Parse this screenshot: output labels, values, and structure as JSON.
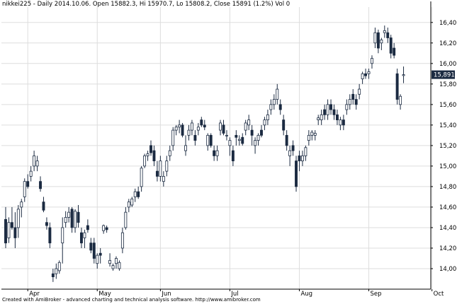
{
  "header": "nikkei225 - Daily 2014.10.06. Open 15882.3, Hi 15970.7, Lo 15808.2, Close 15891 (1.2%) Vol 0",
  "footer": "Created with AmiBroker - advanced charting and technical analysis software. http://www.amibroker.com",
  "colors": {
    "up_body": "#ffffff",
    "down_body": "#1b2a41",
    "wick": "#1b2a41",
    "grid": "#dddddd",
    "last_price_bg": "#1b2a41",
    "last_price_text": "#ffffff"
  },
  "chart_data": {
    "type": "candlestick",
    "title": "",
    "ylim": [
      13800,
      16550
    ],
    "y_ticks": [
      14000,
      14200,
      14400,
      14600,
      14800,
      15000,
      15200,
      15400,
      15600,
      15800,
      16000,
      16200,
      16400
    ],
    "y_tick_labels": [
      "14,000",
      "14,200",
      "14,400",
      "14,600",
      "14,800",
      "15,000",
      "15,200",
      "15,400",
      "15,600",
      "15,800",
      "16,000",
      "16,200",
      "16,400"
    ],
    "month_labels": [
      {
        "label": "Apr",
        "index": 7
      },
      {
        "label": "May",
        "index": 29
      },
      {
        "label": "Jun",
        "index": 49
      },
      {
        "label": "Jul",
        "index": 71
      },
      {
        "label": "Aug",
        "index": 93
      },
      {
        "label": "Sep",
        "index": 115
      },
      {
        "label": "Oct",
        "index": 135
      }
    ],
    "last_price_label": "15,891",
    "last_price_value": 15891,
    "candles": [
      {
        "o": 14480,
        "h": 14600,
        "l": 14200,
        "c": 14250
      },
      {
        "o": 14300,
        "h": 14500,
        "l": 14250,
        "c": 14450
      },
      {
        "o": 14450,
        "h": 14600,
        "l": 14380,
        "c": 14400
      },
      {
        "o": 14400,
        "h": 14550,
        "l": 14200,
        "c": 14300
      },
      {
        "o": 14400,
        "h": 14620,
        "l": 14300,
        "c": 14580
      },
      {
        "o": 14600,
        "h": 14680,
        "l": 14500,
        "c": 14650
      },
      {
        "o": 14700,
        "h": 14880,
        "l": 14650,
        "c": 14850
      },
      {
        "o": 14850,
        "h": 14920,
        "l": 14780,
        "c": 14800
      },
      {
        "o": 14900,
        "h": 15000,
        "l": 14850,
        "c": 14950
      },
      {
        "o": 15000,
        "h": 15150,
        "l": 14950,
        "c": 15100
      },
      {
        "o": 15000,
        "h": 15100,
        "l": 14950,
        "c": 15050
      },
      {
        "o": 14850,
        "h": 14900,
        "l": 14750,
        "c": 14780
      },
      {
        "o": 14650,
        "h": 14700,
        "l": 14550,
        "c": 14570
      },
      {
        "o": 14450,
        "h": 14500,
        "l": 14380,
        "c": 14420
      },
      {
        "o": 14400,
        "h": 14450,
        "l": 14200,
        "c": 14250
      },
      {
        "o": 13950,
        "h": 14000,
        "l": 13870,
        "c": 13920
      },
      {
        "o": 13950,
        "h": 14050,
        "l": 13900,
        "c": 14000
      },
      {
        "o": 13980,
        "h": 14080,
        "l": 13950,
        "c": 14060
      },
      {
        "o": 14250,
        "h": 14500,
        "l": 14050,
        "c": 14400
      },
      {
        "o": 14450,
        "h": 14560,
        "l": 14400,
        "c": 14500
      },
      {
        "o": 14500,
        "h": 14600,
        "l": 14450,
        "c": 14550
      },
      {
        "o": 14580,
        "h": 14600,
        "l": 14350,
        "c": 14400
      },
      {
        "o": 14400,
        "h": 14580,
        "l": 14350,
        "c": 14560
      },
      {
        "o": 14550,
        "h": 14620,
        "l": 14400,
        "c": 14450
      },
      {
        "o": 14350,
        "h": 14400,
        "l": 14200,
        "c": 14250
      },
      {
        "o": 14300,
        "h": 14380,
        "l": 14200,
        "c": 14350
      },
      {
        "o": 14420,
        "h": 14480,
        "l": 14350,
        "c": 14380
      },
      {
        "o": 14250,
        "h": 14300,
        "l": 14150,
        "c": 14180
      },
      {
        "o": 14250,
        "h": 14300,
        "l": 14050,
        "c": 14100
      },
      {
        "o": 14050,
        "h": 14150,
        "l": 14000,
        "c": 14130
      },
      {
        "o": 14150,
        "h": 14200,
        "l": 14050,
        "c": 14130
      },
      {
        "o": 14370,
        "h": 14430,
        "l": 14340,
        "c": 14420
      },
      {
        "o": 14400,
        "h": 14420,
        "l": 14350,
        "c": 14380
      },
      {
        "o": 14050,
        "h": 14150,
        "l": 14020,
        "c": 14080
      },
      {
        "o": 14000,
        "h": 14050,
        "l": 13980,
        "c": 14030
      },
      {
        "o": 14050,
        "h": 14120,
        "l": 14000,
        "c": 14100
      },
      {
        "o": 14000,
        "h": 14080,
        "l": 13980,
        "c": 14060
      },
      {
        "o": 14200,
        "h": 14400,
        "l": 14150,
        "c": 14350
      },
      {
        "o": 14400,
        "h": 14600,
        "l": 14380,
        "c": 14550
      },
      {
        "o": 14600,
        "h": 14680,
        "l": 14550,
        "c": 14650
      },
      {
        "o": 14620,
        "h": 14700,
        "l": 14600,
        "c": 14680
      },
      {
        "o": 14700,
        "h": 14780,
        "l": 14650,
        "c": 14750
      },
      {
        "o": 14750,
        "h": 14800,
        "l": 14680,
        "c": 14700
      },
      {
        "o": 14800,
        "h": 15000,
        "l": 14750,
        "c": 14980
      },
      {
        "o": 15000,
        "h": 15120,
        "l": 14980,
        "c": 15100
      },
      {
        "o": 15100,
        "h": 15150,
        "l": 15050,
        "c": 15120
      },
      {
        "o": 15200,
        "h": 15250,
        "l": 15100,
        "c": 15130
      },
      {
        "o": 15150,
        "h": 15200,
        "l": 15000,
        "c": 15050
      },
      {
        "o": 14950,
        "h": 15050,
        "l": 14850,
        "c": 14900
      },
      {
        "o": 14900,
        "h": 15100,
        "l": 14850,
        "c": 15050
      },
      {
        "o": 14850,
        "h": 14950,
        "l": 14800,
        "c": 14900
      },
      {
        "o": 14950,
        "h": 15100,
        "l": 14900,
        "c": 15050
      },
      {
        "o": 15100,
        "h": 15200,
        "l": 15050,
        "c": 15150
      },
      {
        "o": 15200,
        "h": 15380,
        "l": 15150,
        "c": 15350
      },
      {
        "o": 15350,
        "h": 15400,
        "l": 15300,
        "c": 15380
      },
      {
        "o": 15380,
        "h": 15450,
        "l": 15320,
        "c": 15400
      },
      {
        "o": 15400,
        "h": 15420,
        "l": 15280,
        "c": 15300
      },
      {
        "o": 15150,
        "h": 15300,
        "l": 15100,
        "c": 15200
      },
      {
        "o": 15300,
        "h": 15400,
        "l": 15250,
        "c": 15350
      },
      {
        "o": 15350,
        "h": 15450,
        "l": 15300,
        "c": 15420
      },
      {
        "o": 15300,
        "h": 15350,
        "l": 15200,
        "c": 15250
      },
      {
        "o": 15350,
        "h": 15420,
        "l": 15300,
        "c": 15380
      },
      {
        "o": 15450,
        "h": 15480,
        "l": 15380,
        "c": 15400
      },
      {
        "o": 15400,
        "h": 15450,
        "l": 15350,
        "c": 15380
      },
      {
        "o": 15200,
        "h": 15320,
        "l": 15150,
        "c": 15300
      },
      {
        "o": 15300,
        "h": 15320,
        "l": 15180,
        "c": 15200
      },
      {
        "o": 15150,
        "h": 15200,
        "l": 15050,
        "c": 15100
      },
      {
        "o": 15100,
        "h": 15200,
        "l": 15050,
        "c": 15150
      },
      {
        "o": 15350,
        "h": 15450,
        "l": 15300,
        "c": 15420
      },
      {
        "o": 15400,
        "h": 15450,
        "l": 15300,
        "c": 15320
      },
      {
        "o": 15300,
        "h": 15350,
        "l": 15250,
        "c": 15300
      },
      {
        "o": 15200,
        "h": 15280,
        "l": 15100,
        "c": 15250
      },
      {
        "o": 15150,
        "h": 15200,
        "l": 15000,
        "c": 15050
      },
      {
        "o": 15300,
        "h": 15350,
        "l": 15200,
        "c": 15280
      },
      {
        "o": 15250,
        "h": 15300,
        "l": 15200,
        "c": 15260
      },
      {
        "o": 15280,
        "h": 15320,
        "l": 15200,
        "c": 15220
      },
      {
        "o": 15350,
        "h": 15450,
        "l": 15300,
        "c": 15420
      },
      {
        "o": 15400,
        "h": 15500,
        "l": 15350,
        "c": 15450
      },
      {
        "o": 15350,
        "h": 15400,
        "l": 15200,
        "c": 15300
      },
      {
        "o": 15200,
        "h": 15280,
        "l": 15120,
        "c": 15250
      },
      {
        "o": 15250,
        "h": 15320,
        "l": 15200,
        "c": 15300
      },
      {
        "o": 15350,
        "h": 15400,
        "l": 15280,
        "c": 15300
      },
      {
        "o": 15400,
        "h": 15480,
        "l": 15350,
        "c": 15450
      },
      {
        "o": 15450,
        "h": 15550,
        "l": 15400,
        "c": 15500
      },
      {
        "o": 15550,
        "h": 15650,
        "l": 15500,
        "c": 15600
      },
      {
        "o": 15600,
        "h": 15700,
        "l": 15550,
        "c": 15650
      },
      {
        "o": 15650,
        "h": 15800,
        "l": 15600,
        "c": 15750
      },
      {
        "o": 15600,
        "h": 15650,
        "l": 15500,
        "c": 15550
      },
      {
        "o": 15450,
        "h": 15500,
        "l": 15300,
        "c": 15350
      },
      {
        "o": 15300,
        "h": 15350,
        "l": 15150,
        "c": 15200
      },
      {
        "o": 15100,
        "h": 15200,
        "l": 15000,
        "c": 15150
      },
      {
        "o": 15200,
        "h": 15250,
        "l": 15100,
        "c": 15150
      },
      {
        "o": 15050,
        "h": 15100,
        "l": 14750,
        "c": 14800
      },
      {
        "o": 15100,
        "h": 15150,
        "l": 14950,
        "c": 15050
      },
      {
        "o": 15050,
        "h": 15150,
        "l": 15000,
        "c": 15100
      },
      {
        "o": 15100,
        "h": 15200,
        "l": 15050,
        "c": 15180
      },
      {
        "o": 15250,
        "h": 15350,
        "l": 15200,
        "c": 15300
      },
      {
        "o": 15300,
        "h": 15350,
        "l": 15250,
        "c": 15330
      },
      {
        "o": 15300,
        "h": 15350,
        "l": 15250,
        "c": 15320
      },
      {
        "o": 15450,
        "h": 15500,
        "l": 15400,
        "c": 15470
      },
      {
        "o": 15450,
        "h": 15550,
        "l": 15400,
        "c": 15500
      },
      {
        "o": 15550,
        "h": 15600,
        "l": 15450,
        "c": 15500
      },
      {
        "o": 15500,
        "h": 15650,
        "l": 15450,
        "c": 15600
      },
      {
        "o": 15600,
        "h": 15650,
        "l": 15500,
        "c": 15550
      },
      {
        "o": 15550,
        "h": 15600,
        "l": 15450,
        "c": 15500
      },
      {
        "o": 15500,
        "h": 15550,
        "l": 15400,
        "c": 15450
      },
      {
        "o": 15400,
        "h": 15480,
        "l": 15350,
        "c": 15450
      },
      {
        "o": 15450,
        "h": 15500,
        "l": 15350,
        "c": 15400
      },
      {
        "o": 15550,
        "h": 15650,
        "l": 15500,
        "c": 15600
      },
      {
        "o": 15600,
        "h": 15700,
        "l": 15550,
        "c": 15650
      },
      {
        "o": 15700,
        "h": 15750,
        "l": 15600,
        "c": 15650
      },
      {
        "o": 15650,
        "h": 15700,
        "l": 15550,
        "c": 15600
      },
      {
        "o": 15700,
        "h": 15800,
        "l": 15650,
        "c": 15750
      },
      {
        "o": 15850,
        "h": 15920,
        "l": 15800,
        "c": 15900
      },
      {
        "o": 15900,
        "h": 15950,
        "l": 15850,
        "c": 15880
      },
      {
        "o": 15900,
        "h": 15950,
        "l": 15850,
        "c": 15920
      },
      {
        "o": 16000,
        "h": 16080,
        "l": 15950,
        "c": 16050
      },
      {
        "o": 16200,
        "h": 16350,
        "l": 16150,
        "c": 16300
      },
      {
        "o": 16300,
        "h": 16330,
        "l": 16100,
        "c": 16150
      },
      {
        "o": 16200,
        "h": 16250,
        "l": 16130,
        "c": 16230
      },
      {
        "o": 16300,
        "h": 16370,
        "l": 16250,
        "c": 16320
      },
      {
        "o": 16300,
        "h": 16350,
        "l": 16200,
        "c": 16250
      },
      {
        "o": 16250,
        "h": 16280,
        "l": 16050,
        "c": 16100
      },
      {
        "o": 16150,
        "h": 16200,
        "l": 16050,
        "c": 16080
      },
      {
        "o": 15900,
        "h": 15950,
        "l": 15600,
        "c": 15650
      },
      {
        "o": 15600,
        "h": 15700,
        "l": 15550,
        "c": 15680
      },
      {
        "o": 15882.3,
        "h": 15970.7,
        "l": 15808.2,
        "c": 15891
      }
    ]
  }
}
